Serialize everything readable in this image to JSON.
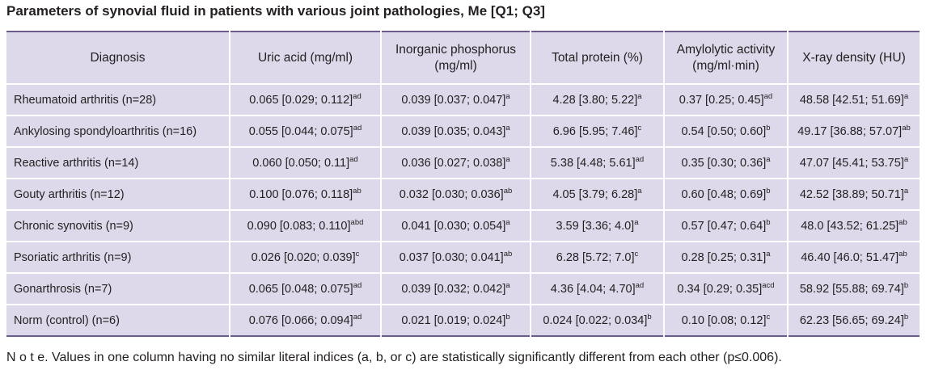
{
  "title": "Parameters of synovial fluid in patients with various joint pathologies, Me [Q1; Q3]",
  "table": {
    "columns": [
      "Diagnosis",
      "Uric acid (mg/ml)",
      "Inorganic phosphorus (mg/ml)",
      "Total protein (%)",
      "Amylolytic activity (mg/ml·min)",
      "X-ray density (HU)"
    ],
    "rows": [
      {
        "diagnosis": "Rheumatoid arthritis (n=28)",
        "cells": [
          {
            "v": "0.065 [0.029; 0.112]",
            "s": "ad"
          },
          {
            "v": "0.039 [0.037; 0.047]",
            "s": "a"
          },
          {
            "v": "4.28 [3.80; 5.22]",
            "s": "a"
          },
          {
            "v": "0.37 [0.25; 0.45]",
            "s": "ad"
          },
          {
            "v": "48.58 [42.51; 51.69]",
            "s": "a"
          }
        ]
      },
      {
        "diagnosis": "Ankylosing spondyloarthritis (n=16)",
        "cells": [
          {
            "v": "0.055 [0.044; 0.075]",
            "s": "ad"
          },
          {
            "v": "0.039 [0.035; 0.043]",
            "s": "a"
          },
          {
            "v": "6.96 [5.95; 7.46]",
            "s": "c"
          },
          {
            "v": "0.54 [0.50; 0.60]",
            "s": "b"
          },
          {
            "v": "49.17 [36.88; 57.07]",
            "s": "ab"
          }
        ]
      },
      {
        "diagnosis": "Reactive arthritis (n=14)",
        "cells": [
          {
            "v": "0.060 [0.050; 0.11]",
            "s": "ad"
          },
          {
            "v": "0.036 [0.027; 0.038]",
            "s": "a"
          },
          {
            "v": "5.38 [4.48; 5.61]",
            "s": "ad"
          },
          {
            "v": "0.35 [0.30; 0.36]",
            "s": "a"
          },
          {
            "v": "47.07 [45.41; 53.75]",
            "s": "a"
          }
        ]
      },
      {
        "diagnosis": "Gouty arthritis (n=12)",
        "cells": [
          {
            "v": "0.100 [0.076; 0.118]",
            "s": "ab"
          },
          {
            "v": "0.032 [0.030; 0.036]",
            "s": "ab"
          },
          {
            "v": "4.05 [3.79; 6.28]",
            "s": "a"
          },
          {
            "v": "0.60 [0.48; 0.69]",
            "s": "b"
          },
          {
            "v": "42.52 [38.89; 50.71]",
            "s": "a"
          }
        ]
      },
      {
        "diagnosis": "Chronic synovitis (n=9)",
        "cells": [
          {
            "v": "0.090 [0.083; 0.110]",
            "s": "abd"
          },
          {
            "v": "0.041 [0.030; 0.054]",
            "s": "a"
          },
          {
            "v": "3.59 [3.36; 4.0]",
            "s": "a"
          },
          {
            "v": "0.57 [0.47; 0.64]",
            "s": "b"
          },
          {
            "v": "48.0 [43.52; 61.25]",
            "s": "ab"
          }
        ]
      },
      {
        "diagnosis": "Psoriatic arthritis (n=9)",
        "cells": [
          {
            "v": "0.026 [0.020; 0.039]",
            "s": "c"
          },
          {
            "v": "0.037 [0.030; 0.041]",
            "s": "ab"
          },
          {
            "v": "6.28 [5.72; 7.0]",
            "s": "c"
          },
          {
            "v": "0.28 [0.25; 0.31]",
            "s": "a"
          },
          {
            "v": "46.40 [46.0; 51.47]",
            "s": "ab"
          }
        ]
      },
      {
        "diagnosis": "Gonarthrosis (n=7)",
        "cells": [
          {
            "v": "0.065 [0.048; 0.075]",
            "s": "ad"
          },
          {
            "v": "0.039 [0.032; 0.042]",
            "s": "a"
          },
          {
            "v": "4.36 [4.04; 4.70]",
            "s": "ad"
          },
          {
            "v": "0.34 [0.29; 0.35]",
            "s": "acd"
          },
          {
            "v": "58.92 [55.88; 69.74]",
            "s": "b"
          }
        ]
      },
      {
        "diagnosis": "Norm (control) (n=6)",
        "cells": [
          {
            "v": "0.076 [0.066; 0.094]",
            "s": "ad"
          },
          {
            "v": "0.021 [0.019; 0.024]",
            "s": "b"
          },
          {
            "v": "0.024 [0.022; 0.034]",
            "s": "b"
          },
          {
            "v": "0.10 [0.08; 0.12]",
            "s": "c"
          },
          {
            "v": "62.23 [56.65; 69.24]",
            "s": "b"
          }
        ]
      }
    ]
  },
  "note": "N o t e. Values in one column having no similar literal indices (a, b, or c) are statistically significantly different from each other (p≤0.006).",
  "colors": {
    "table_background": "#ddd9ea",
    "rule": "#6b5a8c",
    "text": "#231f20"
  }
}
